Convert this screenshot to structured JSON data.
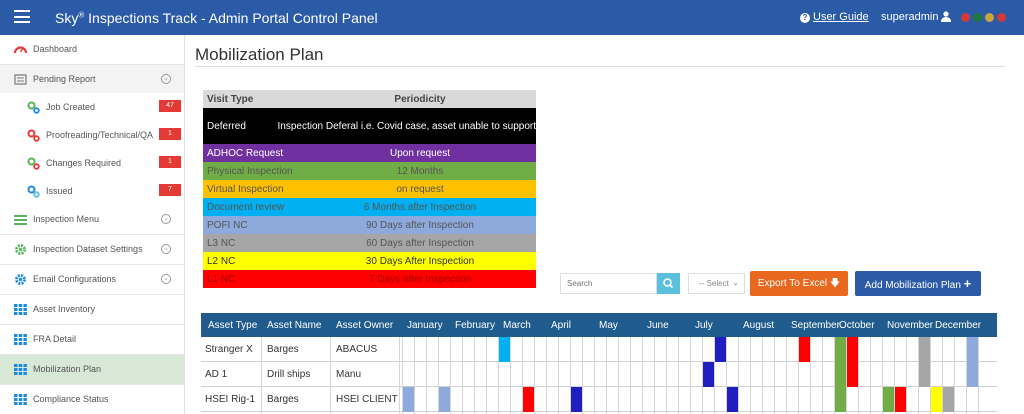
{
  "header": {
    "brand": "Sky",
    "title_rest": " Inspections Track - Admin Portal Control Panel",
    "user_guide": "User Guide",
    "username": "superadmin",
    "flags": [
      "#d23a3a",
      "#1e7a3a",
      "#c8a43a",
      "#d23a3a"
    ]
  },
  "sidebar": {
    "items": [
      {
        "label": "Dashboard",
        "icon": "dashboard-icon"
      },
      {
        "label": "Pending Report",
        "icon": "report-icon"
      },
      {
        "label": "Job Created",
        "icon": "gears-icon",
        "badge": "47"
      },
      {
        "label": "Proofreading/Technical/QA",
        "icon": "gears-icon",
        "badge": "1"
      },
      {
        "label": "Changes Required",
        "icon": "gears-icon",
        "badge": "1"
      },
      {
        "label": "Issued",
        "icon": "gears-icon",
        "badge": "7"
      },
      {
        "label": "Inspection Menu",
        "icon": "list-icon"
      },
      {
        "label": "Inspection Dataset Settings",
        "icon": "gear-icon"
      },
      {
        "label": "Email Configurations",
        "icon": "gear-icon"
      },
      {
        "label": "Asset Inventory",
        "icon": "grid-icon"
      },
      {
        "label": "FRA Detail",
        "icon": "grid-icon"
      },
      {
        "label": "Mobilization Plan",
        "icon": "grid-icon"
      },
      {
        "label": "Compliance Status",
        "icon": "grid-icon"
      }
    ]
  },
  "main": {
    "title": "Mobilization Plan"
  },
  "legend": {
    "headers": [
      "Visit Type",
      "Periodicity"
    ],
    "rows": [
      {
        "type": "Deferred",
        "period": "Inspection Deferal i.e. Covid case, asset unable to support",
        "color": "#000000",
        "text_color": "#ffffff"
      },
      {
        "type": "ADHOC Request",
        "period": "Upon request",
        "color": "#7030a0",
        "text_color": "#ffffff"
      },
      {
        "type": "Physical Inspection",
        "period": "12 Months",
        "color": "#70ad47",
        "text_color": "#555555"
      },
      {
        "type": "Virtual Inspection",
        "period": "on request",
        "color": "#ffc000",
        "text_color": "#555555"
      },
      {
        "type": "Document review",
        "period": "6 Months after Inspection",
        "color": "#00b0f0",
        "text_color": "#555555"
      },
      {
        "type": "POFI NC",
        "period": "90 Days after Inspection",
        "color": "#8ea9db",
        "text_color": "#555555"
      },
      {
        "type": "L3 NC",
        "period": "60 Days after Inspection",
        "color": "#a6a6a6",
        "text_color": "#555555"
      },
      {
        "type": "L2 NC",
        "period": "30 Days After Inspection",
        "color": "#ffff00",
        "text_color": "#333333"
      },
      {
        "type": "L1 NC",
        "period": "7 Days after Inspection",
        "color": "#ff0000",
        "text_color": "#a30000"
      }
    ]
  },
  "toolbar": {
    "search_placeholder": "Search",
    "select_value": "-- Select",
    "export_label": "Export To Excel",
    "add_label": "Add Mobilization Plan"
  },
  "grid": {
    "columns": [
      "Asset Type",
      "Asset Name",
      "Asset Owner"
    ],
    "months": [
      "January",
      "February",
      "March",
      "April",
      "May",
      "June",
      "July",
      "August",
      "September",
      "October",
      "November",
      "December"
    ],
    "rows": [
      {
        "type": "Stranger X",
        "name": "Barges",
        "owner": "ABACUS",
        "cells": [
          {
            "week": 8,
            "color": "#00b0f0"
          },
          {
            "week": 26,
            "color": "#2020c0"
          },
          {
            "week": 33,
            "color": "#ff0000"
          },
          {
            "week": 36,
            "color": "#70ad47"
          },
          {
            "week": 37,
            "color": "#ff0000"
          },
          {
            "week": 43,
            "color": "#a6a6a6"
          },
          {
            "week": 47,
            "color": "#8ea9db"
          }
        ]
      },
      {
        "type": "AD 1",
        "name": "Drill ships",
        "owner": "Manu",
        "cells": [
          {
            "week": 25,
            "color": "#2020c0"
          },
          {
            "week": 36,
            "color": "#70ad47"
          },
          {
            "week": 37,
            "color": "#ff0000"
          },
          {
            "week": 43,
            "color": "#a6a6a6"
          },
          {
            "week": 47,
            "color": "#8ea9db"
          }
        ]
      },
      {
        "type": "HSEI Rig-1",
        "name": "Barges",
        "owner": "HSEI CLIENT",
        "cells": [
          {
            "week": 0,
            "color": "#8ea9db"
          },
          {
            "week": 3,
            "color": "#8ea9db"
          },
          {
            "week": 10,
            "color": "#ff0000"
          },
          {
            "week": 14,
            "color": "#2020c0"
          },
          {
            "week": 27,
            "color": "#2020c0"
          },
          {
            "week": 40,
            "color": "#70ad47"
          },
          {
            "week": 41,
            "color": "#ff0000"
          },
          {
            "week": 44,
            "color": "#ffff00"
          },
          {
            "week": 45,
            "color": "#a6a6a6"
          },
          {
            "week": 36,
            "color": "#70ad47"
          }
        ]
      }
    ]
  }
}
